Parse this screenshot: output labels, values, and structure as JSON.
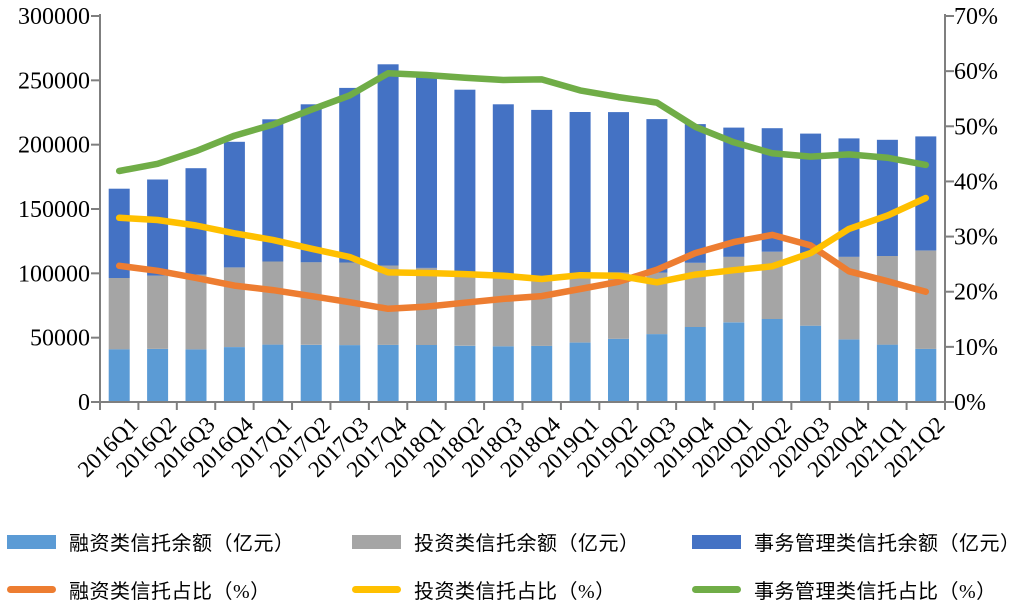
{
  "chart_data": {
    "type": "combo-stacked-bar-line",
    "title": "",
    "grid": false,
    "legend_position": "bottom",
    "background_color": "#ffffff",
    "axis_color": "#7f7f7f",
    "text_color": "#000000",
    "categories": [
      "2016Q1",
      "2016Q2",
      "2016Q3",
      "2016Q4",
      "2017Q1",
      "2017Q2",
      "2017Q3",
      "2017Q4",
      "2018Q1",
      "2018Q2",
      "2018Q3",
      "2018Q4",
      "2019Q1",
      "2019Q2",
      "2019Q3",
      "2019Q4",
      "2020Q1",
      "2020Q2",
      "2020Q3",
      "2020Q4",
      "2021Q1",
      "2021Q2"
    ],
    "left_axis": {
      "min": 0,
      "max": 300000,
      "step": 50000,
      "tick_labels": [
        "0",
        "50000",
        "100000",
        "150000",
        "200000",
        "250000",
        "300000"
      ]
    },
    "right_axis": {
      "min": 0,
      "max": 70,
      "step": 10,
      "unit": "%",
      "tick_labels": [
        "0%",
        "10%",
        "20%",
        "30%",
        "40%",
        "50%",
        "60%",
        "70%"
      ]
    },
    "bar_series": [
      {
        "name": "融资类信托余额（亿元）",
        "color": "#5B9BD5",
        "values": [
          41000,
          41200,
          40900,
          42700,
          44600,
          44400,
          44200,
          44400,
          44300,
          43700,
          43300,
          43600,
          46200,
          49100,
          52800,
          58300,
          61900,
          64500,
          59300,
          48600,
          44600,
          41300
        ]
      },
      {
        "name": "投资类信托余额（亿元）",
        "color": "#A5A5A5",
        "values": [
          55400,
          57000,
          58100,
          61900,
          64600,
          64300,
          64200,
          61700,
          59900,
          56300,
          53000,
          50600,
          51800,
          51600,
          47700,
          49900,
          51000,
          52300,
          56400,
          64300,
          68900,
          76400
        ]
      },
      {
        "name": "事务管理类信托余额（亿元）",
        "color": "#4472C4",
        "values": [
          69400,
          74700,
          82700,
          97600,
          110500,
          122700,
          135700,
          156400,
          151900,
          142700,
          135100,
          132800,
          127400,
          124600,
          119400,
          107800,
          100400,
          96000,
          92900,
          92000,
          90300,
          88700
        ]
      }
    ],
    "line_series": [
      {
        "name": "融资类信托占比（%）",
        "color": "#ED7D31",
        "values": [
          24.7,
          23.8,
          22.5,
          21.1,
          20.3,
          19.2,
          18.1,
          16.9,
          17.3,
          18.0,
          18.7,
          19.2,
          20.5,
          21.8,
          24.0,
          27.0,
          29.0,
          30.3,
          28.4,
          23.7,
          21.9,
          20.0
        ]
      },
      {
        "name": "投资类信托占比（%）",
        "color": "#FFC000",
        "values": [
          33.4,
          33.0,
          32.0,
          30.6,
          29.4,
          27.8,
          26.3,
          23.5,
          23.4,
          23.2,
          22.9,
          22.3,
          23.0,
          22.9,
          21.7,
          23.1,
          23.9,
          24.6,
          27.0,
          31.4,
          33.8,
          37.0
        ]
      },
      {
        "name": "事务管理类信托占比（%）",
        "color": "#70AD47",
        "values": [
          41.9,
          43.2,
          45.5,
          48.3,
          50.3,
          53.0,
          55.6,
          59.6,
          59.3,
          58.8,
          58.4,
          58.5,
          56.5,
          55.3,
          54.3,
          49.9,
          47.1,
          45.1,
          44.5,
          44.9,
          44.3,
          43.0
        ]
      }
    ]
  }
}
